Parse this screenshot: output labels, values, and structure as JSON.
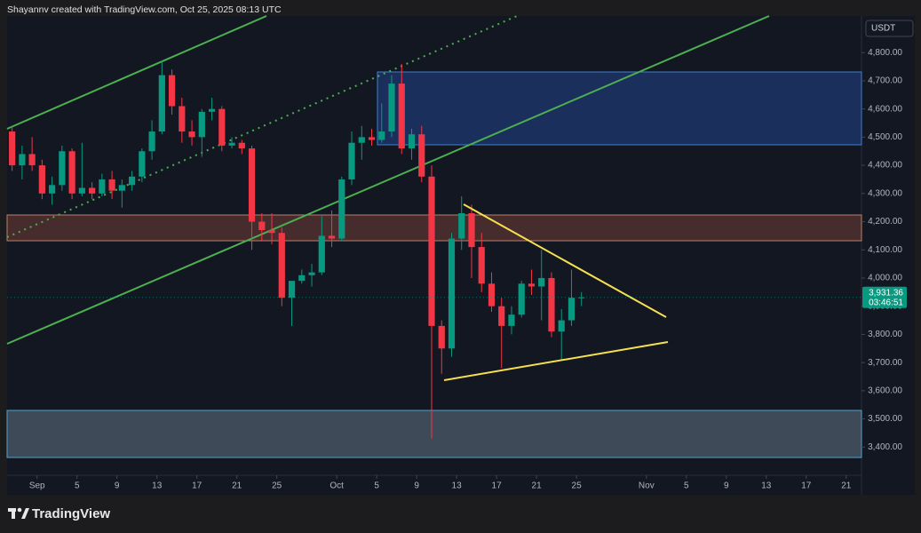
{
  "header": {
    "credit": "Shayannv created with TradingView.com, Oct 25, 2025 08:13 UTC"
  },
  "footer": {
    "brand": "TradingView"
  },
  "chart_data": {
    "type": "candlestick",
    "currency": "USDT",
    "up_color": "#089981",
    "down_color": "#f23645",
    "grid": false,
    "xlim": [
      "2025-08-29",
      "2025-11-22"
    ],
    "xticks": [
      {
        "value": "2025-09-01",
        "label": "Sep"
      },
      {
        "value": "2025-09-05",
        "label": "5"
      },
      {
        "value": "2025-09-09",
        "label": "9"
      },
      {
        "value": "2025-09-13",
        "label": "13"
      },
      {
        "value": "2025-09-17",
        "label": "17"
      },
      {
        "value": "2025-09-21",
        "label": "21"
      },
      {
        "value": "2025-09-25",
        "label": "25"
      },
      {
        "value": "2025-10-01",
        "label": "Oct"
      },
      {
        "value": "2025-10-05",
        "label": "5"
      },
      {
        "value": "2025-10-09",
        "label": "9"
      },
      {
        "value": "2025-10-13",
        "label": "13"
      },
      {
        "value": "2025-10-17",
        "label": "17"
      },
      {
        "value": "2025-10-21",
        "label": "21"
      },
      {
        "value": "2025-10-25",
        "label": "25"
      },
      {
        "value": "2025-11-01",
        "label": "Nov"
      },
      {
        "value": "2025-11-05",
        "label": "5"
      },
      {
        "value": "2025-11-09",
        "label": "9"
      },
      {
        "value": "2025-11-13",
        "label": "13"
      },
      {
        "value": "2025-11-17",
        "label": "17"
      },
      {
        "value": "2025-11-21",
        "label": "21"
      }
    ],
    "ylim": [
      3300,
      4930
    ],
    "yticks": [
      {
        "value": 3400,
        "label": "3,400.00"
      },
      {
        "value": 3500,
        "label": "3,500.00"
      },
      {
        "value": 3600,
        "label": "3,600.00"
      },
      {
        "value": 3700,
        "label": "3,700.00"
      },
      {
        "value": 3800,
        "label": "3,800.00"
      },
      {
        "value": 3900,
        "label": "3,900.00"
      },
      {
        "value": 4000,
        "label": "4,000.00"
      },
      {
        "value": 4100,
        "label": "4,100.00"
      },
      {
        "value": 4200,
        "label": "4,200.00"
      },
      {
        "value": 4300,
        "label": "4,300.00"
      },
      {
        "value": 4400,
        "label": "4,400.00"
      },
      {
        "value": 4500,
        "label": "4,500.00"
      },
      {
        "value": 4600,
        "label": "4,600.00"
      },
      {
        "value": 4700,
        "label": "4,700.00"
      },
      {
        "value": 4800,
        "label": "4,800.00"
      }
    ],
    "last_price": {
      "value": 3931.36,
      "label": "3,931.36"
    },
    "countdown": "03:46:51",
    "x": [
      "2025-08-29",
      "2025-08-30",
      "2025-08-31",
      "2025-09-01",
      "2025-09-02",
      "2025-09-03",
      "2025-09-04",
      "2025-09-05",
      "2025-09-06",
      "2025-09-07",
      "2025-09-08",
      "2025-09-09",
      "2025-09-10",
      "2025-09-11",
      "2025-09-12",
      "2025-09-13",
      "2025-09-14",
      "2025-09-15",
      "2025-09-16",
      "2025-09-17",
      "2025-09-18",
      "2025-09-19",
      "2025-09-20",
      "2025-09-21",
      "2025-09-22",
      "2025-09-23",
      "2025-09-24",
      "2025-09-25",
      "2025-09-26",
      "2025-09-27",
      "2025-09-28",
      "2025-09-29",
      "2025-09-30",
      "2025-10-01",
      "2025-10-02",
      "2025-10-03",
      "2025-10-04",
      "2025-10-05",
      "2025-10-06",
      "2025-10-07",
      "2025-10-08",
      "2025-10-09",
      "2025-10-10",
      "2025-10-11",
      "2025-10-12",
      "2025-10-13",
      "2025-10-14",
      "2025-10-15",
      "2025-10-16",
      "2025-10-17",
      "2025-10-18",
      "2025-10-19",
      "2025-10-20",
      "2025-10-21",
      "2025-10-22",
      "2025-10-23",
      "2025-10-24",
      "2025-10-25"
    ],
    "open": [
      4520,
      4400,
      4440,
      4400,
      4300,
      4330,
      4450,
      4300,
      4320,
      4300,
      4350,
      4310,
      4330,
      4360,
      4450,
      4520,
      4720,
      4610,
      4520,
      4500,
      4590,
      4600,
      4470,
      4480,
      4460,
      4200,
      4170,
      4160,
      3930,
      3990,
      4010,
      4020,
      4150,
      4140,
      4350,
      4480,
      4500,
      4490,
      4520,
      4690,
      4460,
      4510,
      4360,
      3830,
      3750,
      4140,
      4230,
      4110,
      3980,
      3900,
      3830,
      3870,
      3980,
      3970,
      4000,
      3810,
      3850,
      3930
    ],
    "high": [
      4540,
      4470,
      4500,
      4420,
      4360,
      4470,
      4460,
      4480,
      4340,
      4370,
      4380,
      4350,
      4380,
      4460,
      4560,
      4770,
      4740,
      4640,
      4560,
      4600,
      4640,
      4610,
      4500,
      4490,
      4470,
      4230,
      4230,
      4180,
      3980,
      4030,
      4050,
      4220,
      4240,
      4360,
      4520,
      4540,
      4530,
      4620,
      4720,
      4760,
      4530,
      4540,
      4400,
      3850,
      4160,
      4290,
      4260,
      4160,
      4020,
      3930,
      3900,
      3990,
      4030,
      4100,
      4020,
      3890,
      4030,
      3950
    ],
    "low": [
      4380,
      4350,
      4380,
      4280,
      4260,
      4310,
      4280,
      4290,
      4280,
      4290,
      4280,
      4250,
      4310,
      4340,
      4420,
      4510,
      4580,
      4480,
      4470,
      4430,
      4560,
      4450,
      4460,
      4440,
      4100,
      4130,
      4120,
      3900,
      3830,
      3980,
      3970,
      4010,
      4110,
      4130,
      4330,
      4420,
      4470,
      4480,
      4500,
      4440,
      4420,
      4340,
      3430,
      3660,
      3720,
      4100,
      4000,
      3950,
      3880,
      3680,
      3800,
      3860,
      3940,
      3850,
      3790,
      3710,
      3830,
      3900
    ],
    "close": [
      4400,
      4440,
      4400,
      4300,
      4330,
      4450,
      4300,
      4320,
      4300,
      4350,
      4310,
      4330,
      4360,
      4450,
      4520,
      4720,
      4610,
      4520,
      4500,
      4590,
      4600,
      4470,
      4480,
      4460,
      4200,
      4170,
      4160,
      3930,
      3990,
      4010,
      4020,
      4150,
      4140,
      4350,
      4480,
      4500,
      4490,
      4520,
      4690,
      4460,
      4510,
      4360,
      3830,
      3750,
      4140,
      4230,
      4110,
      3980,
      3900,
      3830,
      3870,
      3980,
      3970,
      4000,
      3810,
      3850,
      3930,
      3931.36
    ]
  }
}
